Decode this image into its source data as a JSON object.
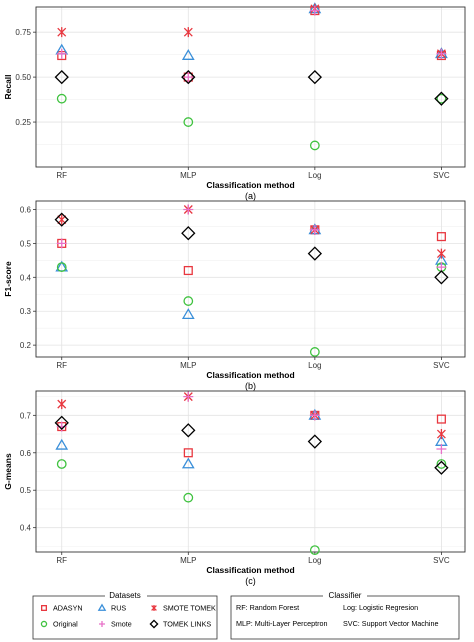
{
  "colors": {
    "ADASYN": "#e8373f",
    "RUS": "#3a8fd9",
    "SMOTE TOMEK": "#e8373f",
    "Original": "#3fc23f",
    "Smote": "#e870c8",
    "TOMEK LINKS": "#000000"
  },
  "shapes": {
    "ADASYN": "square",
    "RUS": "triangle",
    "SMOTE TOMEK": "x-cross",
    "Original": "circle",
    "Smote": "plus",
    "TOMEK LINKS": "diamond"
  },
  "chart_data": [
    {
      "type": "scatter",
      "caption": "(a)",
      "xlabel": "Classification method",
      "ylabel": "Recall",
      "categories": [
        "RF",
        "MLP",
        "Log",
        "SVC"
      ],
      "ylim": [
        0.0,
        0.89
      ],
      "yticks": [
        0.25,
        0.5,
        0.75
      ],
      "ytick_labels": [
        "0.25",
        "0.50",
        "0.75"
      ],
      "grid": true,
      "series": [
        {
          "name": "ADASYN",
          "values": [
            0.62,
            0.5,
            0.87,
            0.62
          ]
        },
        {
          "name": "RUS",
          "values": [
            0.65,
            0.62,
            0.88,
            0.63
          ]
        },
        {
          "name": "SMOTE TOMEK",
          "values": [
            0.75,
            0.75,
            0.88,
            0.63
          ]
        },
        {
          "name": "Original",
          "values": [
            0.38,
            0.25,
            0.12,
            0.38
          ]
        },
        {
          "name": "Smote",
          "values": [
            0.63,
            0.5,
            0.87,
            0.63
          ]
        },
        {
          "name": "TOMEK LINKS",
          "values": [
            0.5,
            0.5,
            0.5,
            0.38
          ]
        }
      ]
    },
    {
      "type": "scatter",
      "caption": "(b)",
      "xlabel": "Classification method",
      "ylabel": "F1-score",
      "categories": [
        "RF",
        "MLP",
        "Log",
        "SVC"
      ],
      "ylim": [
        0.165,
        0.625
      ],
      "yticks": [
        0.2,
        0.3,
        0.4,
        0.5,
        0.6
      ],
      "ytick_labels": [
        "0.2",
        "0.3",
        "0.4",
        "0.5",
        "0.6"
      ],
      "grid": true,
      "series": [
        {
          "name": "ADASYN",
          "values": [
            0.5,
            0.42,
            0.54,
            0.52
          ]
        },
        {
          "name": "RUS",
          "values": [
            0.43,
            0.29,
            0.54,
            0.45
          ]
        },
        {
          "name": "SMOTE TOMEK",
          "values": [
            0.57,
            0.6,
            0.54,
            0.47
          ]
        },
        {
          "name": "Original",
          "values": [
            0.43,
            0.33,
            0.18,
            0.43
          ]
        },
        {
          "name": "Smote",
          "values": [
            0.5,
            0.6,
            0.54,
            0.43
          ]
        },
        {
          "name": "TOMEK LINKS",
          "values": [
            0.57,
            0.53,
            0.47,
            0.4
          ]
        }
      ]
    },
    {
      "type": "scatter",
      "caption": "(c)",
      "xlabel": "Classification method",
      "ylabel": "G-means",
      "categories": [
        "RF",
        "MLP",
        "Log",
        "SVC"
      ],
      "ylim": [
        0.335,
        0.765
      ],
      "yticks": [
        0.4,
        0.5,
        0.6,
        0.7
      ],
      "ytick_labels": [
        "0.4",
        "0.5",
        "0.6",
        "0.7"
      ],
      "grid": true,
      "series": [
        {
          "name": "ADASYN",
          "values": [
            0.67,
            0.6,
            0.7,
            0.69
          ]
        },
        {
          "name": "RUS",
          "values": [
            0.62,
            0.57,
            0.7,
            0.63
          ]
        },
        {
          "name": "SMOTE TOMEK",
          "values": [
            0.73,
            0.75,
            0.7,
            0.65
          ]
        },
        {
          "name": "Original",
          "values": [
            0.57,
            0.48,
            0.34,
            0.57
          ]
        },
        {
          "name": "Smote",
          "values": [
            0.67,
            0.75,
            0.7,
            0.61
          ]
        },
        {
          "name": "TOMEK LINKS",
          "values": [
            0.68,
            0.66,
            0.63,
            0.56
          ]
        }
      ]
    }
  ],
  "legend": {
    "datasets_title": "Datasets",
    "datasets": [
      "ADASYN",
      "RUS",
      "SMOTE TOMEK",
      "Original",
      "Smote",
      "TOMEK LINKS"
    ],
    "classifier_title": "Classifier",
    "classifiers": [
      "RF: Random Forest",
      "Log: Logistic Regresion",
      "MLP: Multi-Layer Perceptron",
      "SVC: Support Vector Machine"
    ]
  }
}
